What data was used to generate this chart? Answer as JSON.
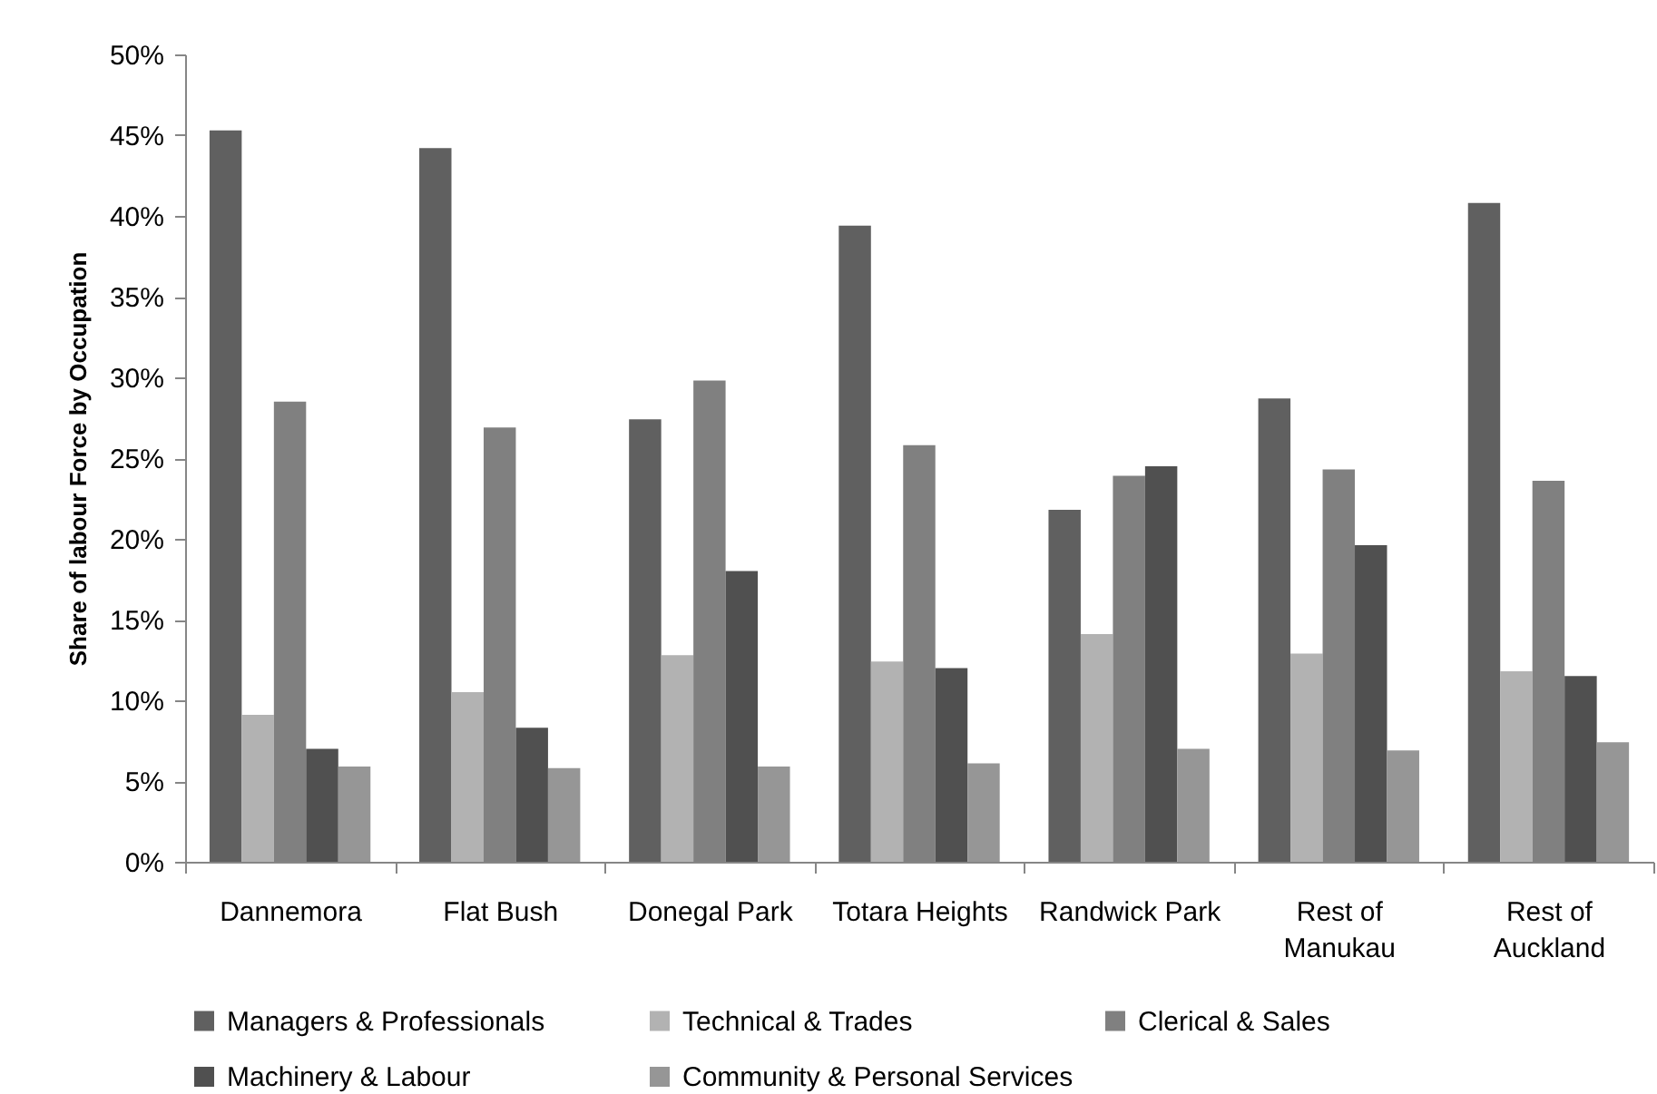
{
  "chart_data": {
    "type": "bar",
    "ylabel": "Share of labour Force by Occupation",
    "categories": [
      "Dannemora",
      "Flat Bush",
      "Donegal Park",
      "Totara Heights",
      "Randwick Park",
      "Rest of Manukau",
      "Rest of Auckland"
    ],
    "series": [
      {
        "name": "Managers & Professionals",
        "color": "#606060",
        "values": [
          45.3,
          44.2,
          27.4,
          39.4,
          21.8,
          28.7,
          40.8
        ]
      },
      {
        "name": "Technical & Trades",
        "color": "#b2b2b2",
        "values": [
          9.1,
          10.5,
          12.8,
          12.4,
          14.1,
          12.9,
          11.8
        ]
      },
      {
        "name": "Clerical & Sales",
        "color": "#808080",
        "values": [
          28.5,
          26.9,
          29.8,
          25.8,
          23.9,
          24.3,
          23.6
        ]
      },
      {
        "name": "Machinery & Labour",
        "color": "#505050",
        "values": [
          7.0,
          8.3,
          18.0,
          12.0,
          24.5,
          19.6,
          11.5
        ]
      },
      {
        "name": "Community & Personal Services",
        "color": "#969696",
        "values": [
          5.9,
          5.8,
          5.9,
          6.1,
          7.0,
          6.9,
          7.4
        ]
      }
    ],
    "ylim": [
      0,
      50
    ],
    "yticks": [
      {
        "value": 0,
        "label": "0%"
      },
      {
        "value": 5,
        "label": "5%"
      },
      {
        "value": 10,
        "label": "10%"
      },
      {
        "value": 15,
        "label": "15%"
      },
      {
        "value": 20,
        "label": "20%"
      },
      {
        "value": 25,
        "label": "25%"
      },
      {
        "value": 30,
        "label": "30%"
      },
      {
        "value": 35,
        "label": "35%"
      },
      {
        "value": 40,
        "label": "40%"
      },
      {
        "value": 45,
        "label": "45%"
      },
      {
        "value": 50,
        "label": "50%"
      }
    ],
    "grid": false,
    "legend": "bottom"
  }
}
